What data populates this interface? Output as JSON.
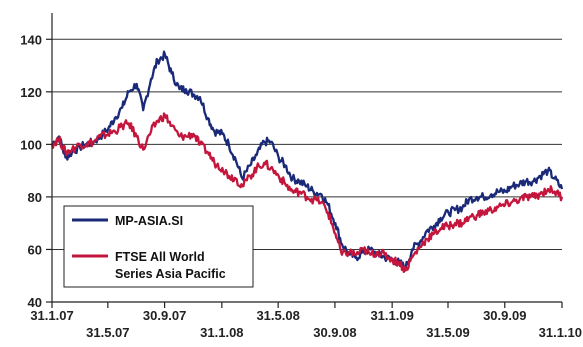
{
  "chart_data": {
    "type": "line",
    "title": "",
    "xlabel": "",
    "ylabel": "",
    "ylim": [
      40,
      150
    ],
    "yticks": [
      40,
      60,
      80,
      100,
      120,
      140
    ],
    "xlim": [
      "2007-01-31",
      "2010-01-31"
    ],
    "xticks": [
      {
        "date": "2007-01-31",
        "label": "31.1.07"
      },
      {
        "date": "2007-05-31",
        "label": "31.5.07"
      },
      {
        "date": "2007-09-30",
        "label": "30.9.07"
      },
      {
        "date": "2008-01-31",
        "label": "31.1.08"
      },
      {
        "date": "2008-05-31",
        "label": "31.5.08"
      },
      {
        "date": "2008-09-30",
        "label": "30.9.08"
      },
      {
        "date": "2009-01-31",
        "label": "31.1.09"
      },
      {
        "date": "2009-05-31",
        "label": "31.5.09"
      },
      {
        "date": "2009-09-30",
        "label": "30.9.09"
      },
      {
        "date": "2010-01-31",
        "label": "31.1.10"
      }
    ],
    "grid": "horizontal",
    "legend_position": "bottom-left",
    "series": [
      {
        "name": "MP-ASIA.SI",
        "color": "#1a2a78",
        "points": [
          [
            "2007-01-31",
            100
          ],
          [
            "2007-02-15",
            103
          ],
          [
            "2007-03-01",
            95
          ],
          [
            "2007-03-15",
            97
          ],
          [
            "2007-04-01",
            99
          ],
          [
            "2007-04-15",
            100
          ],
          [
            "2007-05-01",
            101
          ],
          [
            "2007-05-15",
            103
          ],
          [
            "2007-06-01",
            106
          ],
          [
            "2007-06-15",
            110
          ],
          [
            "2007-07-01",
            114
          ],
          [
            "2007-07-15",
            120
          ],
          [
            "2007-08-01",
            123
          ],
          [
            "2007-08-15",
            113
          ],
          [
            "2007-09-01",
            125
          ],
          [
            "2007-09-15",
            132
          ],
          [
            "2007-10-01",
            134
          ],
          [
            "2007-10-15",
            127
          ],
          [
            "2007-11-01",
            121
          ],
          [
            "2007-11-15",
            121
          ],
          [
            "2007-12-01",
            119
          ],
          [
            "2007-12-15",
            118
          ],
          [
            "2008-01-01",
            110
          ],
          [
            "2008-01-15",
            105
          ],
          [
            "2008-02-01",
            104
          ],
          [
            "2008-02-15",
            100
          ],
          [
            "2008-03-01",
            94
          ],
          [
            "2008-03-15",
            87
          ],
          [
            "2008-04-01",
            92
          ],
          [
            "2008-04-15",
            96
          ],
          [
            "2008-05-01",
            101
          ],
          [
            "2008-05-15",
            101
          ],
          [
            "2008-06-01",
            95
          ],
          [
            "2008-06-15",
            92
          ],
          [
            "2008-07-01",
            87
          ],
          [
            "2008-07-15",
            86
          ],
          [
            "2008-08-01",
            84
          ],
          [
            "2008-08-15",
            82
          ],
          [
            "2008-09-01",
            81
          ],
          [
            "2008-09-15",
            77
          ],
          [
            "2008-10-01",
            70
          ],
          [
            "2008-10-15",
            62
          ],
          [
            "2008-11-01",
            58
          ],
          [
            "2008-11-15",
            57
          ],
          [
            "2008-12-01",
            59
          ],
          [
            "2008-12-15",
            60
          ],
          [
            "2009-01-01",
            58
          ],
          [
            "2009-01-15",
            57
          ],
          [
            "2009-02-01",
            56
          ],
          [
            "2009-02-15",
            55
          ],
          [
            "2009-03-01",
            53
          ],
          [
            "2009-03-15",
            60
          ],
          [
            "2009-04-01",
            63
          ],
          [
            "2009-04-15",
            67
          ],
          [
            "2009-05-01",
            69
          ],
          [
            "2009-05-15",
            72
          ],
          [
            "2009-06-01",
            74
          ],
          [
            "2009-06-15",
            75
          ],
          [
            "2009-07-01",
            76
          ],
          [
            "2009-07-15",
            79
          ],
          [
            "2009-08-01",
            80
          ],
          [
            "2009-08-15",
            80
          ],
          [
            "2009-09-01",
            81
          ],
          [
            "2009-09-15",
            82
          ],
          [
            "2009-10-01",
            82
          ],
          [
            "2009-10-15",
            84
          ],
          [
            "2009-11-01",
            85
          ],
          [
            "2009-11-15",
            86
          ],
          [
            "2009-12-01",
            86
          ],
          [
            "2009-12-15",
            88
          ],
          [
            "2010-01-01",
            90
          ],
          [
            "2010-01-15",
            87
          ],
          [
            "2010-01-31",
            83
          ]
        ]
      },
      {
        "name": "FTSE All World Series  Asia Pacific",
        "color": "#c4163c",
        "points": [
          [
            "2007-01-31",
            100
          ],
          [
            "2007-02-15",
            102
          ],
          [
            "2007-03-01",
            97
          ],
          [
            "2007-03-15",
            98
          ],
          [
            "2007-04-01",
            100
          ],
          [
            "2007-04-15",
            100
          ],
          [
            "2007-05-01",
            101
          ],
          [
            "2007-05-15",
            103
          ],
          [
            "2007-06-01",
            104
          ],
          [
            "2007-06-15",
            105
          ],
          [
            "2007-07-01",
            107
          ],
          [
            "2007-07-15",
            108
          ],
          [
            "2007-08-01",
            103
          ],
          [
            "2007-08-15",
            98
          ],
          [
            "2007-09-01",
            105
          ],
          [
            "2007-09-15",
            109
          ],
          [
            "2007-10-01",
            111
          ],
          [
            "2007-10-15",
            107
          ],
          [
            "2007-11-01",
            103
          ],
          [
            "2007-11-15",
            103
          ],
          [
            "2007-12-01",
            104
          ],
          [
            "2007-12-15",
            100
          ],
          [
            "2008-01-01",
            97
          ],
          [
            "2008-01-15",
            93
          ],
          [
            "2008-02-01",
            91
          ],
          [
            "2008-02-15",
            88
          ],
          [
            "2008-03-01",
            87
          ],
          [
            "2008-03-15",
            84
          ],
          [
            "2008-04-01",
            88
          ],
          [
            "2008-04-15",
            91
          ],
          [
            "2008-05-01",
            93
          ],
          [
            "2008-05-15",
            91
          ],
          [
            "2008-06-01",
            88
          ],
          [
            "2008-06-15",
            85
          ],
          [
            "2008-07-01",
            82
          ],
          [
            "2008-07-15",
            82
          ],
          [
            "2008-08-01",
            80
          ],
          [
            "2008-08-15",
            79
          ],
          [
            "2008-09-01",
            78
          ],
          [
            "2008-09-15",
            74
          ],
          [
            "2008-10-01",
            66
          ],
          [
            "2008-10-15",
            58
          ],
          [
            "2008-11-01",
            59
          ],
          [
            "2008-11-15",
            58
          ],
          [
            "2008-12-01",
            60
          ],
          [
            "2008-12-15",
            58
          ],
          [
            "2009-01-01",
            59
          ],
          [
            "2009-01-15",
            58
          ],
          [
            "2009-02-01",
            56
          ],
          [
            "2009-02-15",
            55
          ],
          [
            "2009-03-01",
            52
          ],
          [
            "2009-03-15",
            57
          ],
          [
            "2009-04-01",
            61
          ],
          [
            "2009-04-15",
            64
          ],
          [
            "2009-05-01",
            66
          ],
          [
            "2009-05-15",
            68
          ],
          [
            "2009-06-01",
            69
          ],
          [
            "2009-06-15",
            70
          ],
          [
            "2009-07-01",
            70
          ],
          [
            "2009-07-15",
            72
          ],
          [
            "2009-08-01",
            73
          ],
          [
            "2009-08-15",
            74
          ],
          [
            "2009-09-01",
            75
          ],
          [
            "2009-09-15",
            76
          ],
          [
            "2009-10-01",
            77
          ],
          [
            "2009-10-15",
            78
          ],
          [
            "2009-11-01",
            79
          ],
          [
            "2009-11-15",
            80
          ],
          [
            "2009-12-01",
            80
          ],
          [
            "2009-12-15",
            81
          ],
          [
            "2010-01-01",
            83
          ],
          [
            "2010-01-15",
            82
          ],
          [
            "2010-01-31",
            80
          ]
        ]
      }
    ],
    "legend": [
      {
        "label_lines": [
          "MP-ASIA.SI"
        ],
        "color": "#1a2a78"
      },
      {
        "label_lines": [
          "FTSE All World",
          "Series  Asia Pacific"
        ],
        "color": "#c4163c"
      }
    ]
  }
}
